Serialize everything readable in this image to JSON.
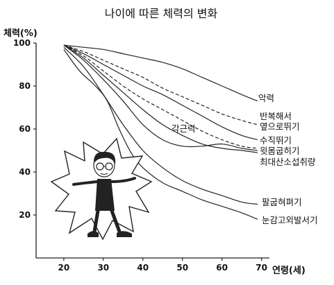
{
  "chart_data": {
    "type": "line",
    "title": "나이에 따른 체력의 변화",
    "ylabel": "체력(%)",
    "xlabel": "연령(세)",
    "xlim": [
      13,
      72
    ],
    "ylim": [
      0,
      100
    ],
    "x_ticks": [
      20,
      30,
      40,
      50,
      60,
      70
    ],
    "y_ticks": [
      20,
      40,
      60,
      80,
      100
    ],
    "grid": false,
    "series": [
      {
        "name": "악력",
        "dashed": false,
        "points": [
          [
            20,
            99
          ],
          [
            25,
            98
          ],
          [
            30,
            97
          ],
          [
            35,
            95
          ],
          [
            40,
            93
          ],
          [
            45,
            91
          ],
          [
            50,
            88
          ],
          [
            55,
            84
          ],
          [
            60,
            80
          ],
          [
            65,
            76
          ],
          [
            69,
            73
          ]
        ]
      },
      {
        "name": "반복해서 옆으로뛰기",
        "dashed": true,
        "points": [
          [
            20,
            99
          ],
          [
            25,
            96
          ],
          [
            30,
            92
          ],
          [
            35,
            88
          ],
          [
            40,
            84
          ],
          [
            45,
            79
          ],
          [
            50,
            75
          ],
          [
            55,
            71
          ],
          [
            60,
            67
          ],
          [
            65,
            64
          ],
          [
            69,
            62
          ]
        ]
      },
      {
        "name": "수직뛰기",
        "dashed": false,
        "points": [
          [
            20,
            99
          ],
          [
            25,
            95
          ],
          [
            30,
            90
          ],
          [
            35,
            85
          ],
          [
            40,
            80
          ],
          [
            45,
            76
          ],
          [
            50,
            71
          ],
          [
            55,
            66
          ],
          [
            60,
            61
          ],
          [
            65,
            57
          ],
          [
            69,
            55
          ]
        ]
      },
      {
        "name": "윗몸굽히기",
        "dashed": true,
        "points": [
          [
            20,
            99
          ],
          [
            25,
            94
          ],
          [
            30,
            87
          ],
          [
            35,
            80
          ],
          [
            40,
            74
          ],
          [
            45,
            69
          ],
          [
            50,
            64
          ],
          [
            55,
            59
          ],
          [
            60,
            55
          ],
          [
            65,
            52
          ],
          [
            69,
            51
          ]
        ]
      },
      {
        "name": "최대산소섭취량",
        "dashed": false,
        "points": [
          [
            20,
            99
          ],
          [
            25,
            93
          ],
          [
            30,
            85
          ],
          [
            35,
            77
          ],
          [
            40,
            69
          ],
          [
            45,
            62
          ],
          [
            50,
            57
          ],
          [
            55,
            53
          ],
          [
            60,
            51
          ],
          [
            65,
            50
          ],
          [
            69,
            49
          ]
        ]
      },
      {
        "name": "각근력",
        "dashed": false,
        "points": [
          [
            20,
            99
          ],
          [
            25,
            92
          ],
          [
            30,
            83
          ],
          [
            35,
            73
          ],
          [
            40,
            62
          ],
          [
            45,
            55
          ],
          [
            50,
            52
          ],
          [
            55,
            52
          ],
          [
            60,
            53
          ],
          [
            65,
            51
          ],
          [
            69,
            50
          ]
        ]
      },
      {
        "name": "팔굽혀펴기",
        "dashed": false,
        "points": [
          [
            20,
            98
          ],
          [
            25,
            89
          ],
          [
            30,
            76
          ],
          [
            35,
            62
          ],
          [
            40,
            50
          ],
          [
            45,
            42
          ],
          [
            50,
            36
          ],
          [
            55,
            32
          ],
          [
            60,
            29
          ],
          [
            65,
            26
          ],
          [
            69,
            25
          ]
        ]
      },
      {
        "name": "눈감고외발서기",
        "dashed": false,
        "points": [
          [
            20,
            97
          ],
          [
            24,
            87
          ],
          [
            28,
            80
          ],
          [
            31,
            73
          ],
          [
            34,
            60
          ],
          [
            37,
            49
          ],
          [
            40,
            42
          ],
          [
            45,
            35
          ],
          [
            50,
            31
          ],
          [
            55,
            27
          ],
          [
            60,
            24
          ],
          [
            65,
            21
          ],
          [
            69,
            18
          ]
        ]
      }
    ],
    "label_text": {
      "악력": [
        "악력"
      ],
      "반복해서 옆으로뛰기": [
        "반복해서",
        "옆으로뛰기"
      ],
      "수직뛰기": [
        "수직뛰기"
      ],
      "윗몸굽히기": [
        "윗몸굽히기"
      ],
      "최대산소섭취량": [
        "최대산소섭취량"
      ],
      "각근력": [
        "각근력"
      ],
      "팔굽혀펴기": [
        "팔굽혀펴기"
      ],
      "눈감고외발서기": [
        "눈감고외발서기"
      ]
    }
  }
}
